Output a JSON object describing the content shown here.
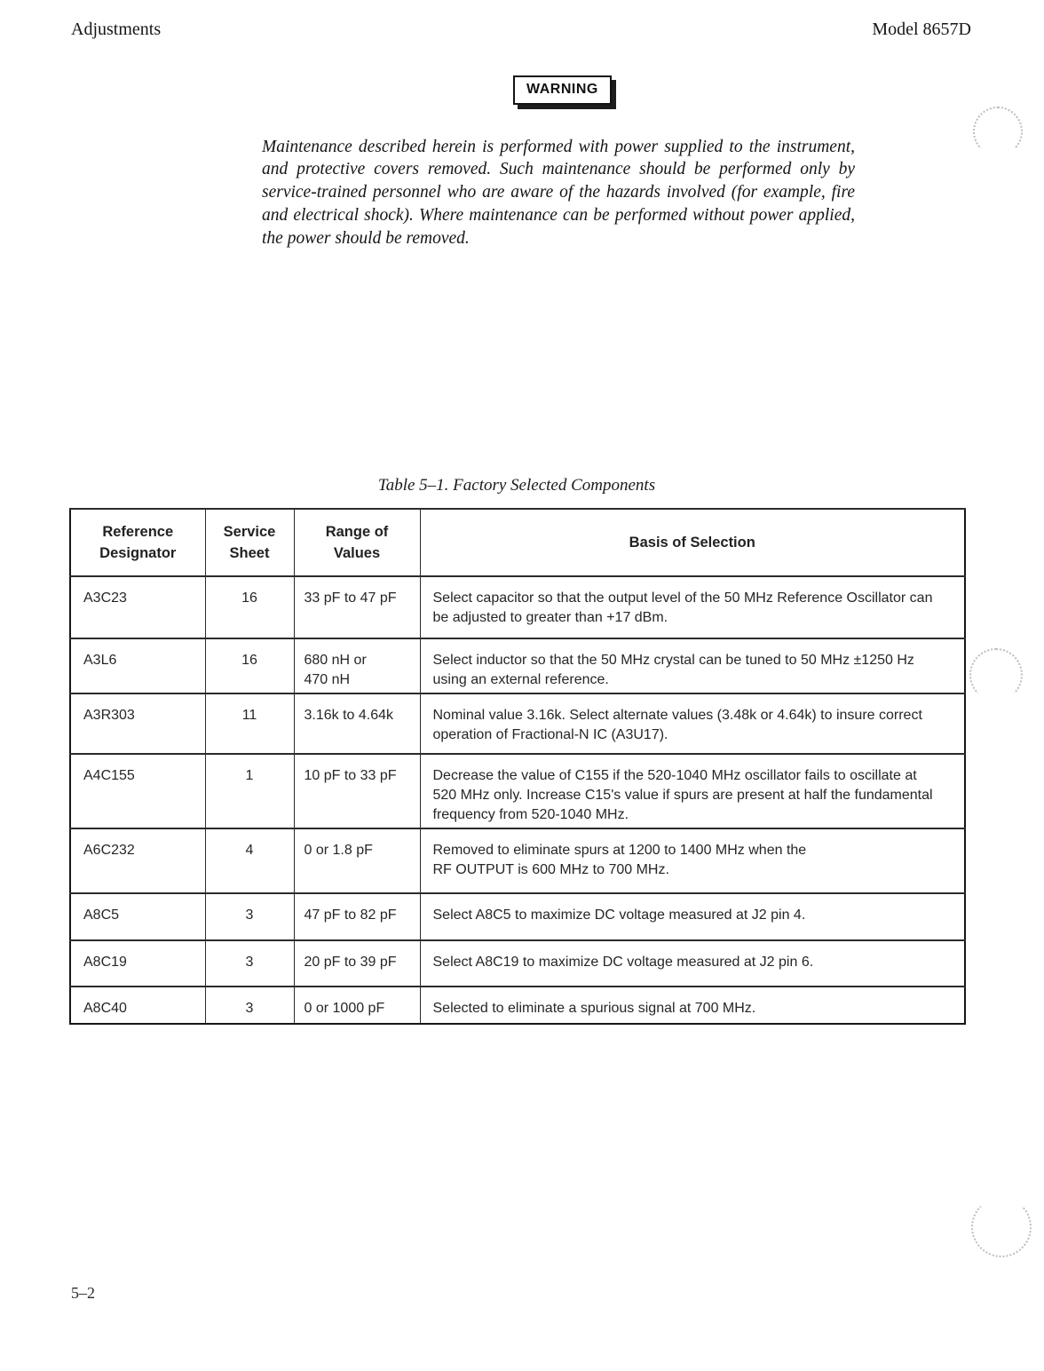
{
  "colors": {
    "ink": "#1d1d1d",
    "paper": "#ffffff",
    "scan_artifact": "#bdbdbd"
  },
  "page": {
    "header_left": "Adjustments",
    "header_right": "Model 8657D",
    "page_number": "5–2"
  },
  "warning": {
    "label": "WARNING",
    "body": "Maintenance described herein is performed with power supplied to the instrument, and protective covers removed. Such maintenance should be performed only by service-trained personnel who are aware of the hazards involved (for example, fire and electrical shock). Where maintenance can be performed without power applied, the power should be removed."
  },
  "table": {
    "title": "Table 5–1. Factory Selected Components",
    "columns": [
      "Reference\nDesignator",
      "Service\nSheet",
      "Range of\nValues",
      "Basis of Selection"
    ],
    "rows": [
      {
        "ref": "A3C23",
        "sheet": "16",
        "range": "33 pF to 47 pF",
        "basis": "Select capacitor so that the output level of the 50 MHz Reference Oscillator can be adjusted to greater than +17 dBm."
      },
      {
        "ref": "A3L6",
        "sheet": "16",
        "range": "680 nH or\n470 nH",
        "basis": "Select inductor so that the 50 MHz crystal can be tuned to 50 MHz ±1250 Hz using an external reference."
      },
      {
        "ref": "A3R303",
        "sheet": "11",
        "range": "3.16k to 4.64k",
        "basis": "Nominal value 3.16k. Select alternate values (3.48k or 4.64k) to insure correct operation of Fractional-N IC (A3U17)."
      },
      {
        "ref": "A4C155",
        "sheet": "1",
        "range": "10 pF to 33 pF",
        "basis": "Decrease the value of C155 if the 520-1040 MHz oscillator fails to oscillate at 520 MHz only. Increase C15's value if spurs are present at half the fundamental frequency from 520-1040 MHz."
      },
      {
        "ref": "A6C232",
        "sheet": "4",
        "range": "0 or 1.8 pF",
        "basis": "Removed to eliminate spurs at 1200 to 1400 MHz when the\nRF OUTPUT is 600 MHz to 700 MHz."
      },
      {
        "ref": "A8C5",
        "sheet": "3",
        "range": "47 pF to 82 pF",
        "basis": "Select A8C5 to maximize DC voltage measured at J2 pin 4."
      },
      {
        "ref": "A8C19",
        "sheet": "3",
        "range": "20 pF to 39 pF",
        "basis": "Select A8C19 to maximize DC voltage measured at J2 pin 6."
      },
      {
        "ref": "A8C40",
        "sheet": "3",
        "range": "0 or 1000 pF",
        "basis": "Selected to eliminate a spurious signal at 700 MHz."
      }
    ]
  }
}
